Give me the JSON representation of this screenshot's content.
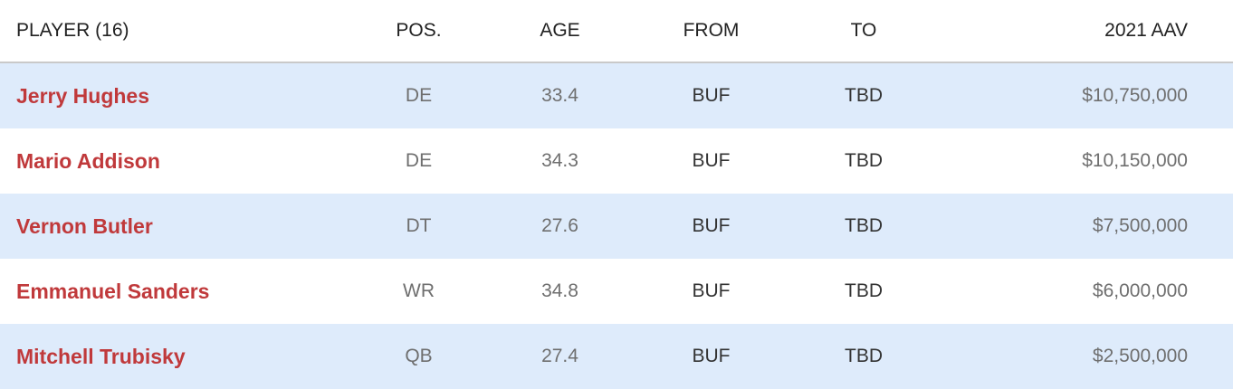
{
  "header": {
    "player": "PLAYER (16)",
    "pos": "POS.",
    "age": "AGE",
    "from": "FROM",
    "to": "TO",
    "aav": "2021 AAV"
  },
  "rows": [
    {
      "player": "Jerry Hughes",
      "pos": "DE",
      "age": "33.4",
      "from": "BUF",
      "to": "TBD",
      "aav": "$10,750,000"
    },
    {
      "player": "Mario Addison",
      "pos": "DE",
      "age": "34.3",
      "from": "BUF",
      "to": "TBD",
      "aav": "$10,150,000"
    },
    {
      "player": "Vernon Butler",
      "pos": "DT",
      "age": "27.6",
      "from": "BUF",
      "to": "TBD",
      "aav": "$7,500,000"
    },
    {
      "player": "Emmanuel Sanders",
      "pos": "WR",
      "age": "34.8",
      "from": "BUF",
      "to": "TBD",
      "aav": "$6,000,000"
    },
    {
      "player": "Mitchell Trubisky",
      "pos": "QB",
      "age": "27.4",
      "from": "BUF",
      "to": "TBD",
      "aav": "$2,500,000"
    }
  ],
  "colors": {
    "row_alt": "#deebfb",
    "player_link": "#c0393b"
  }
}
